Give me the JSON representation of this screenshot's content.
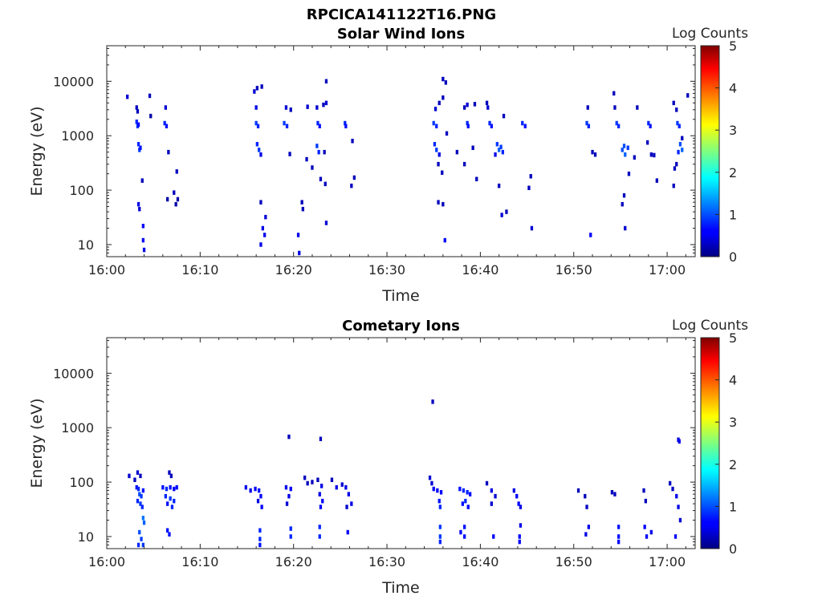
{
  "figure": {
    "title": "RPCICA141122T16.PNG"
  },
  "chart_data": [
    {
      "type": "heatmap",
      "title": "Solar Wind Ions",
      "xlabel": "Time",
      "ylabel": "Energy (eV)",
      "xticks": [
        "16:00",
        "16:10",
        "16:20",
        "16:30",
        "16:40",
        "16:50",
        "17:00"
      ],
      "xlim_minutes": [
        0,
        63
      ],
      "yscale": "log",
      "ylim": [
        6,
        45000
      ],
      "yticks": [
        "10",
        "100",
        "1000",
        "10000"
      ],
      "colorbar": {
        "label": "Log Counts",
        "ticks": [
          "0",
          "1",
          "2",
          "3",
          "4",
          "5"
        ],
        "range": [
          0,
          5
        ],
        "colormap": "jet"
      },
      "data": [
        [
          2.2,
          5200,
          0.4
        ],
        [
          3.2,
          3300,
          0.3
        ],
        [
          3.3,
          2800,
          0.3
        ],
        [
          3.2,
          1800,
          0.8
        ],
        [
          3.3,
          1500,
          0.9
        ],
        [
          3.4,
          1600,
          0.6
        ],
        [
          3.4,
          700,
          0.8
        ],
        [
          3.5,
          550,
          0.9
        ],
        [
          3.6,
          600,
          0.7
        ],
        [
          3.8,
          150,
          0.3
        ],
        [
          3.4,
          55,
          0.5
        ],
        [
          3.5,
          45,
          0.4
        ],
        [
          3.9,
          22,
          0.6
        ],
        [
          3.9,
          12,
          0.6
        ],
        [
          4.0,
          8,
          0.5
        ],
        [
          4.6,
          5400,
          0.3
        ],
        [
          4.7,
          2300,
          0.2
        ],
        [
          6.3,
          3300,
          0.4
        ],
        [
          6.2,
          1700,
          0.8
        ],
        [
          6.4,
          1500,
          0.7
        ],
        [
          6.6,
          500,
          0.3
        ],
        [
          7.5,
          220,
          0.3
        ],
        [
          7.2,
          90,
          0.3
        ],
        [
          6.5,
          68,
          0.2
        ],
        [
          7.6,
          68,
          0.2
        ],
        [
          7.4,
          55,
          0.2
        ],
        [
          15.8,
          6500,
          0.4
        ],
        [
          16.1,
          7500,
          0.3
        ],
        [
          16.6,
          8000,
          0.3
        ],
        [
          16.0,
          3300,
          0.5
        ],
        [
          16.0,
          1700,
          0.9
        ],
        [
          16.2,
          1500,
          0.8
        ],
        [
          16.1,
          700,
          0.8
        ],
        [
          16.3,
          550,
          0.9
        ],
        [
          16.5,
          450,
          0.5
        ],
        [
          16.5,
          60,
          0.3
        ],
        [
          17.0,
          32,
          0.4
        ],
        [
          16.7,
          20,
          0.5
        ],
        [
          16.9,
          15,
          0.5
        ],
        [
          16.5,
          10,
          0.5
        ],
        [
          19.0,
          1700,
          0.9
        ],
        [
          19.3,
          1500,
          0.8
        ],
        [
          19.2,
          3300,
          0.4
        ],
        [
          19.7,
          3000,
          0.3
        ],
        [
          19.6,
          460,
          0.3
        ],
        [
          20.5,
          15,
          0.5
        ],
        [
          20.6,
          7,
          0.5
        ],
        [
          20.9,
          60,
          0.3
        ],
        [
          21.0,
          45,
          0.3
        ],
        [
          21.5,
          3400,
          0.4
        ],
        [
          21.4,
          370,
          0.3
        ],
        [
          22.0,
          260,
          0.3
        ],
        [
          22.5,
          3300,
          0.4
        ],
        [
          22.6,
          1700,
          0.8
        ],
        [
          22.8,
          1500,
          0.7
        ],
        [
          22.5,
          650,
          0.9
        ],
        [
          22.7,
          500,
          0.8
        ],
        [
          22.9,
          160,
          0.3
        ],
        [
          23.4,
          130,
          0.3
        ],
        [
          23.2,
          3700,
          0.3
        ],
        [
          23.5,
          4000,
          0.4
        ],
        [
          23.5,
          10000,
          0.3
        ],
        [
          23.5,
          25,
          0.4
        ],
        [
          23.3,
          500,
          0.3
        ],
        [
          25.5,
          1700,
          0.8
        ],
        [
          25.6,
          1500,
          0.7
        ],
        [
          26.3,
          800,
          0.3
        ],
        [
          26.5,
          170,
          0.3
        ],
        [
          26.2,
          120,
          0.3
        ],
        [
          35.6,
          4000,
          0.3
        ],
        [
          35.2,
          3100,
          0.4
        ],
        [
          35.0,
          1700,
          0.9
        ],
        [
          35.3,
          1500,
          0.8
        ],
        [
          35.1,
          700,
          0.8
        ],
        [
          35.3,
          550,
          0.9
        ],
        [
          35.6,
          450,
          0.5
        ],
        [
          35.5,
          300,
          0.3
        ],
        [
          35.9,
          210,
          0.3
        ],
        [
          35.5,
          60,
          0.3
        ],
        [
          36.0,
          55,
          0.3
        ],
        [
          36.2,
          12,
          0.6
        ],
        [
          36.0,
          11000,
          0.3
        ],
        [
          36.3,
          9500,
          0.3
        ],
        [
          36.0,
          5000,
          0.3
        ],
        [
          36.4,
          1100,
          0.3
        ],
        [
          37.5,
          500,
          0.3
        ],
        [
          38.6,
          3700,
          0.4
        ],
        [
          38.3,
          3300,
          0.3
        ],
        [
          38.6,
          1700,
          0.8
        ],
        [
          38.7,
          1500,
          0.7
        ],
        [
          38.3,
          300,
          0.3
        ],
        [
          39.4,
          3800,
          0.3
        ],
        [
          39.2,
          600,
          0.3
        ],
        [
          39.6,
          160,
          0.3
        ],
        [
          40.7,
          4000,
          0.3
        ],
        [
          40.8,
          3300,
          0.4
        ],
        [
          41.0,
          1700,
          0.8
        ],
        [
          41.2,
          1500,
          0.7
        ],
        [
          41.8,
          700,
          0.9
        ],
        [
          42.0,
          550,
          1.1
        ],
        [
          42.2,
          620,
          0.9
        ],
        [
          42.4,
          500,
          0.8
        ],
        [
          41.6,
          450,
          0.5
        ],
        [
          42.5,
          2300,
          0.3
        ],
        [
          42.0,
          120,
          0.3
        ],
        [
          42.3,
          35,
          0.4
        ],
        [
          42.8,
          40,
          0.3
        ],
        [
          44.5,
          1700,
          0.8
        ],
        [
          44.8,
          1500,
          0.7
        ],
        [
          45.4,
          180,
          0.3
        ],
        [
          45.5,
          20,
          0.4
        ],
        [
          45.2,
          110,
          0.3
        ],
        [
          51.5,
          3300,
          0.3
        ],
        [
          51.4,
          1700,
          0.9
        ],
        [
          51.6,
          1500,
          0.8
        ],
        [
          51.8,
          15,
          0.6
        ],
        [
          52.0,
          500,
          0.3
        ],
        [
          52.3,
          450,
          0.3
        ],
        [
          54.3,
          6000,
          0.3
        ],
        [
          54.4,
          3300,
          0.3
        ],
        [
          54.6,
          1700,
          0.9
        ],
        [
          54.8,
          1500,
          0.8
        ],
        [
          55.4,
          650,
          1.0
        ],
        [
          55.5,
          450,
          1.1
        ],
        [
          55.2,
          550,
          1.0
        ],
        [
          55.8,
          600,
          0.9
        ],
        [
          55.4,
          80,
          0.3
        ],
        [
          55.2,
          55,
          0.3
        ],
        [
          55.5,
          20,
          0.4
        ],
        [
          55.9,
          200,
          0.3
        ],
        [
          56.5,
          400,
          0.3
        ],
        [
          56.8,
          3300,
          0.3
        ],
        [
          58.0,
          1700,
          0.8
        ],
        [
          58.2,
          1500,
          0.7
        ],
        [
          57.9,
          750,
          0.3
        ],
        [
          58.6,
          440,
          0.3
        ],
        [
          58.9,
          150,
          0.3
        ],
        [
          58.3,
          450,
          0.3
        ],
        [
          60.7,
          4000,
          0.3
        ],
        [
          61.0,
          3000,
          0.3
        ],
        [
          61.1,
          1700,
          0.9
        ],
        [
          61.3,
          1500,
          0.8
        ],
        [
          61.4,
          700,
          1.0
        ],
        [
          61.6,
          550,
          1.1
        ],
        [
          61.2,
          500,
          0.8
        ],
        [
          61.0,
          300,
          0.3
        ],
        [
          60.8,
          250,
          0.3
        ],
        [
          60.7,
          120,
          0.3
        ],
        [
          61.6,
          900,
          0.3
        ],
        [
          62.2,
          5500,
          0.3
        ]
      ]
    },
    {
      "type": "heatmap",
      "title": "Cometary Ions",
      "xlabel": "Time",
      "ylabel": "Energy (eV)",
      "xticks": [
        "16:00",
        "16:10",
        "16:20",
        "16:30",
        "16:40",
        "16:50",
        "17:00"
      ],
      "xlim_minutes": [
        0,
        63
      ],
      "yscale": "log",
      "ylim": [
        6,
        45000
      ],
      "yticks": [
        "10",
        "100",
        "1000",
        "10000"
      ],
      "colorbar": {
        "label": "Log Counts",
        "ticks": [
          "0",
          "1",
          "2",
          "3",
          "4",
          "5"
        ],
        "range": [
          0,
          5
        ],
        "colormap": "jet"
      },
      "data": [
        [
          2.4,
          130,
          0.4
        ],
        [
          3.0,
          110,
          0.3
        ],
        [
          3.3,
          150,
          0.4
        ],
        [
          3.6,
          130,
          0.3
        ],
        [
          3.2,
          80,
          0.7
        ],
        [
          3.4,
          75,
          0.8
        ],
        [
          3.5,
          60,
          1.0
        ],
        [
          3.7,
          55,
          0.9
        ],
        [
          3.9,
          70,
          0.7
        ],
        [
          3.3,
          45,
          0.8
        ],
        [
          3.6,
          40,
          0.9
        ],
        [
          3.8,
          35,
          0.8
        ],
        [
          3.9,
          22,
          1.2
        ],
        [
          4.0,
          18,
          1.1
        ],
        [
          3.5,
          12,
          1.0
        ],
        [
          3.7,
          9,
          0.9
        ],
        [
          3.4,
          7,
          0.8
        ],
        [
          3.9,
          7,
          0.9
        ],
        [
          6.0,
          80,
          0.7
        ],
        [
          6.4,
          75,
          0.8
        ],
        [
          6.8,
          80,
          0.7
        ],
        [
          7.2,
          75,
          0.6
        ],
        [
          7.5,
          80,
          0.7
        ],
        [
          6.3,
          55,
          0.8
        ],
        [
          6.8,
          50,
          0.9
        ],
        [
          7.2,
          45,
          0.8
        ],
        [
          6.5,
          40,
          0.7
        ],
        [
          7.0,
          35,
          0.8
        ],
        [
          6.7,
          150,
          0.3
        ],
        [
          6.9,
          130,
          0.3
        ],
        [
          6.5,
          13,
          0.7
        ],
        [
          6.7,
          11,
          0.7
        ],
        [
          14.9,
          80,
          0.5
        ],
        [
          15.4,
          70,
          0.5
        ],
        [
          15.9,
          75,
          0.6
        ],
        [
          16.3,
          70,
          0.7
        ],
        [
          16.5,
          55,
          0.6
        ],
        [
          16.2,
          45,
          0.5
        ],
        [
          16.6,
          35,
          0.6
        ],
        [
          16.4,
          13,
          0.8
        ],
        [
          16.4,
          9,
          0.8
        ],
        [
          16.4,
          7,
          0.7
        ],
        [
          19.2,
          80,
          0.5
        ],
        [
          19.7,
          75,
          0.6
        ],
        [
          19.5,
          55,
          0.5
        ],
        [
          19.3,
          40,
          0.4
        ],
        [
          19.7,
          14,
          0.8
        ],
        [
          19.7,
          10,
          0.8
        ],
        [
          19.5,
          680,
          0.3
        ],
        [
          21.2,
          120,
          0.3
        ],
        [
          21.5,
          95,
          0.3
        ],
        [
          22.0,
          100,
          0.3
        ],
        [
          22.6,
          110,
          0.3
        ],
        [
          23.0,
          85,
          0.5
        ],
        [
          22.8,
          60,
          0.5
        ],
        [
          23.1,
          45,
          0.6
        ],
        [
          22.9,
          35,
          0.6
        ],
        [
          22.8,
          15,
          0.8
        ],
        [
          22.8,
          10,
          0.8
        ],
        [
          22.9,
          620,
          0.3
        ],
        [
          24.1,
          110,
          0.3
        ],
        [
          24.6,
          80,
          0.5
        ],
        [
          25.2,
          90,
          0.4
        ],
        [
          25.6,
          80,
          0.5
        ],
        [
          25.9,
          60,
          0.5
        ],
        [
          26.2,
          40,
          0.5
        ],
        [
          25.7,
          35,
          0.4
        ],
        [
          25.8,
          12,
          0.6
        ],
        [
          34.9,
          3000,
          0.3
        ],
        [
          34.6,
          120,
          0.4
        ],
        [
          34.8,
          95,
          0.4
        ],
        [
          35.0,
          75,
          0.6
        ],
        [
          35.4,
          70,
          0.6
        ],
        [
          35.8,
          65,
          0.6
        ],
        [
          35.6,
          45,
          0.7
        ],
        [
          35.7,
          35,
          0.8
        ],
        [
          35.7,
          15,
          0.9
        ],
        [
          35.7,
          10,
          0.9
        ],
        [
          35.7,
          8,
          0.8
        ],
        [
          37.8,
          75,
          0.7
        ],
        [
          38.2,
          70,
          0.8
        ],
        [
          38.6,
          65,
          0.8
        ],
        [
          38.9,
          60,
          0.7
        ],
        [
          38.4,
          45,
          0.8
        ],
        [
          38.1,
          40,
          0.7
        ],
        [
          38.7,
          35,
          0.6
        ],
        [
          38.3,
          15,
          0.7
        ],
        [
          38.3,
          10,
          0.7
        ],
        [
          37.9,
          12,
          0.6
        ],
        [
          40.7,
          95,
          0.3
        ],
        [
          41.2,
          70,
          0.5
        ],
        [
          41.6,
          55,
          0.4
        ],
        [
          41.2,
          40,
          0.4
        ],
        [
          41.4,
          10,
          0.6
        ],
        [
          43.6,
          70,
          0.5
        ],
        [
          43.9,
          55,
          0.6
        ],
        [
          44.1,
          40,
          0.6
        ],
        [
          44.3,
          35,
          0.5
        ],
        [
          44.2,
          10,
          0.6
        ],
        [
          44.2,
          8,
          0.6
        ],
        [
          44.3,
          16,
          0.5
        ],
        [
          50.5,
          70,
          0.3
        ],
        [
          51.2,
          55,
          0.3
        ],
        [
          51.4,
          35,
          0.3
        ],
        [
          51.6,
          15,
          0.5
        ],
        [
          51.3,
          11,
          0.5
        ],
        [
          54.1,
          65,
          0.3
        ],
        [
          54.4,
          60,
          0.3
        ],
        [
          54.8,
          15,
          0.7
        ],
        [
          54.8,
          10,
          0.7
        ],
        [
          54.8,
          8,
          0.6
        ],
        [
          57.5,
          70,
          0.3
        ],
        [
          57.7,
          45,
          0.3
        ],
        [
          57.6,
          15,
          0.6
        ],
        [
          57.8,
          10,
          0.6
        ],
        [
          58.3,
          12,
          0.5
        ],
        [
          60.3,
          95,
          0.3
        ],
        [
          60.6,
          75,
          0.3
        ],
        [
          61.0,
          55,
          0.5
        ],
        [
          61.2,
          35,
          0.5
        ],
        [
          61.4,
          20,
          0.4
        ],
        [
          60.9,
          10,
          0.6
        ],
        [
          61.2,
          600,
          0.5
        ],
        [
          61.3,
          560,
          0.5
        ]
      ]
    }
  ]
}
